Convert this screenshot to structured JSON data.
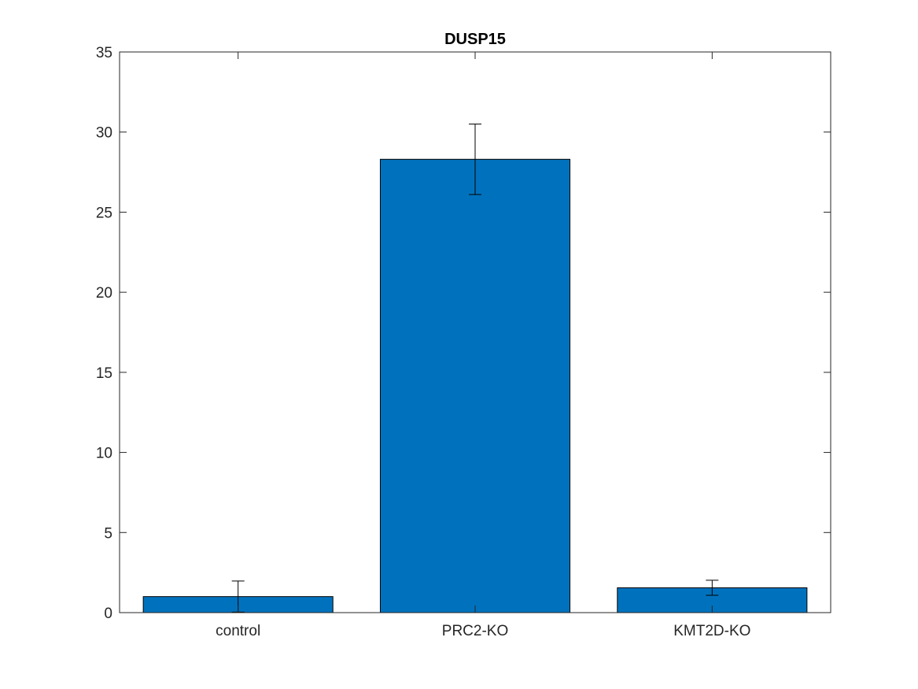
{
  "chart_data": {
    "type": "bar",
    "title": "DUSP15",
    "xlabel": "",
    "ylabel": "",
    "categories": [
      "control",
      "PRC2-KO",
      "KMT2D-KO"
    ],
    "values": [
      1.0,
      28.3,
      1.55
    ],
    "error": [
      0.97,
      2.2,
      0.47
    ],
    "ylim": [
      0,
      35
    ],
    "yticks": [
      0,
      5,
      10,
      15,
      20,
      25,
      30,
      35
    ],
    "ytick_labels": [
      "0",
      "5",
      "10",
      "15",
      "20",
      "25",
      "30",
      "35"
    ],
    "grid": false,
    "colors": {
      "bar": "#0072BD",
      "axis": "#262626",
      "errorbar": "#000000"
    }
  }
}
